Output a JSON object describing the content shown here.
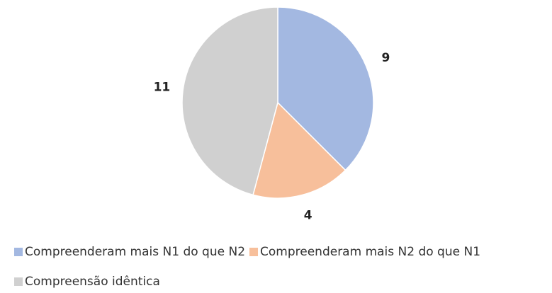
{
  "chart_data": {
    "type": "pie",
    "categories": [
      "Compreenderam mais N1 do que N2",
      "Compreenderam mais N2 do que N1",
      "Compreensão idêntica"
    ],
    "values": [
      9,
      4,
      11
    ],
    "colors": [
      "#a3b8e1",
      "#f7bf9b",
      "#d0d0d0"
    ],
    "legend": "bottom"
  }
}
